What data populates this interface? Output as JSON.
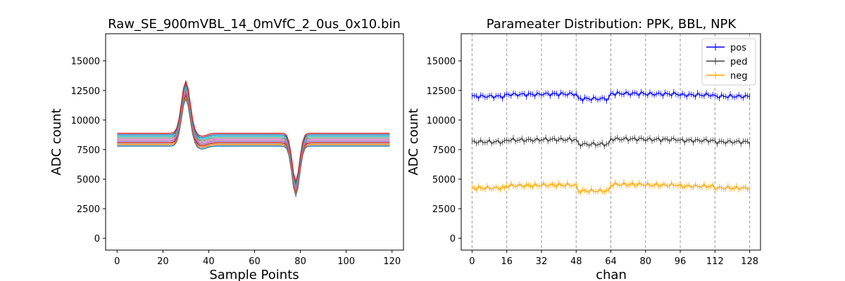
{
  "chart_data": [
    {
      "type": "line",
      "title": "Raw_SE_900mVBL_14_0mVfC_2_0us_0x10.bin",
      "xlabel": "Sample Points",
      "ylabel": "ADC count",
      "xlim": [
        -5,
        125
      ],
      "ylim": [
        -1000,
        17300
      ],
      "xticks": [
        0,
        20,
        40,
        60,
        80,
        100,
        120
      ],
      "yticks": [
        0,
        2500,
        5000,
        7500,
        10000,
        12500,
        15000
      ],
      "grid": false,
      "waveform": {
        "samples": 120,
        "baseline_range": [
          7800,
          8800
        ],
        "channel_count": 12,
        "positive_peak": {
          "center": 30,
          "height": 4000
        },
        "negative_peak": {
          "center": 78,
          "depth": 4200
        }
      },
      "series_colors": [
        "#1f77b4",
        "#ff7f0e",
        "#2ca02c",
        "#d62728",
        "#9467bd",
        "#8c564b",
        "#e377c2",
        "#7f7f7f",
        "#bcbd22",
        "#17becf",
        "#1f77b4",
        "#d62728"
      ]
    },
    {
      "type": "line",
      "title": "Parameater Distribution: PPK, BBL, NPK",
      "xlabel": "chan",
      "ylabel": "ADC count",
      "xlim": [
        -5,
        133
      ],
      "ylim": [
        -1000,
        17300
      ],
      "xticks": [
        0,
        16,
        32,
        48,
        64,
        80,
        96,
        112,
        128
      ],
      "yticks": [
        0,
        2500,
        5000,
        7500,
        10000,
        12500,
        15000
      ],
      "vlines": [
        0,
        16,
        32,
        48,
        64,
        80,
        96,
        112,
        128
      ],
      "legend": {
        "position": "top-right"
      },
      "series": [
        {
          "name": "pos",
          "color": "#0000ff",
          "base": 12000,
          "errorbar": true
        },
        {
          "name": "ped",
          "color": "#404040",
          "base": 8150,
          "errorbar": true
        },
        {
          "name": "neg",
          "color": "#ffa500",
          "base": 4250,
          "errorbar": true
        }
      ],
      "channels": 128,
      "group_offsets": [
        0,
        200,
        250,
        -250,
        300,
        250,
        150,
        0
      ]
    }
  ]
}
